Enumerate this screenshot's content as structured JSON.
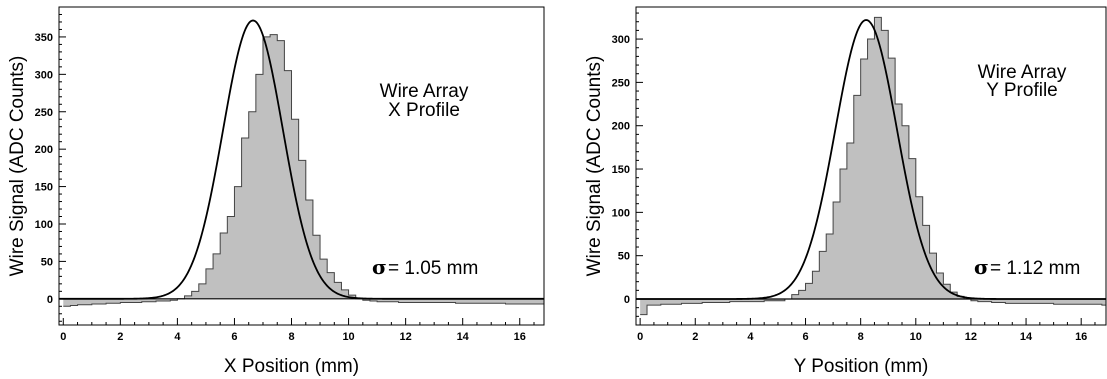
{
  "chart_data": [
    {
      "type": "bar",
      "title": "",
      "xlabel": "X Position (mm)",
      "ylabel": "Wire Signal (ADC Counts)",
      "annotation_lines": [
        "Wire Array",
        "X Profile"
      ],
      "sigma_symbol": "σ",
      "sigma_text": "= 1.05 mm",
      "xlim": [
        -0.15,
        16.85
      ],
      "ylim": [
        -35,
        390
      ],
      "x_ticks": [
        0,
        2,
        4,
        6,
        8,
        10,
        12,
        14,
        16
      ],
      "y_ticks": [
        0,
        50,
        100,
        150,
        200,
        250,
        300,
        350
      ],
      "bin_width": 0.25,
      "bin_start": 0.0,
      "values": [
        -10,
        -9,
        -8,
        -8,
        -7,
        -7,
        -6,
        -6,
        -5,
        -5,
        -5,
        -4,
        -4,
        -3,
        -3,
        -2,
        0,
        4,
        10,
        20,
        40,
        60,
        88,
        110,
        150,
        215,
        250,
        300,
        350,
        353,
        345,
        305,
        240,
        185,
        132,
        85,
        53,
        35,
        22,
        12,
        5,
        0,
        -2,
        -3,
        -4,
        -4,
        -4,
        -5,
        -5,
        -5,
        -5,
        -5,
        -5,
        -5,
        -5,
        -6,
        -6,
        -6,
        -6,
        -6,
        -6,
        -6,
        -7,
        -7,
        -7,
        -7,
        -7,
        -7
      ],
      "fit": {
        "model": "gaussian_plus_constant",
        "mean": 6.65,
        "sigma": 1.05,
        "amplitude": 372,
        "baseline": 0
      },
      "grid": false,
      "fill_color": "#c0c0c0",
      "line_color": "#000000"
    },
    {
      "type": "bar",
      "title": "",
      "xlabel": "Y Position (mm)",
      "ylabel": "Wire Signal (ADC Counts)",
      "annotation_lines": [
        "Wire Array",
        "Y Profile"
      ],
      "sigma_symbol": "σ",
      "sigma_text": "= 1.12 mm",
      "xlim": [
        -0.15,
        16.9
      ],
      "ylim": [
        -30,
        337
      ],
      "x_ticks": [
        0,
        2,
        4,
        6,
        8,
        10,
        12,
        14,
        16
      ],
      "y_ticks": [
        0,
        50,
        100,
        150,
        200,
        250,
        300
      ],
      "bin_width": 0.25,
      "bin_start": 0.0,
      "values": [
        -18,
        -7,
        -7,
        -6,
        -6,
        -6,
        -5,
        -5,
        -5,
        -4,
        -4,
        -4,
        -4,
        -3,
        -3,
        -3,
        -3,
        -3,
        -2,
        -2,
        -2,
        0,
        5,
        10,
        18,
        32,
        55,
        75,
        112,
        150,
        180,
        235,
        277,
        300,
        325,
        310,
        278,
        225,
        200,
        162,
        118,
        85,
        53,
        30,
        17,
        8,
        3,
        0,
        -2,
        -3,
        -3,
        -4,
        -4,
        -5,
        -5,
        -5,
        -5,
        -5,
        -5,
        -5,
        -6,
        -6,
        -6,
        -6,
        -6,
        -6,
        -6,
        -7
      ],
      "fit": {
        "model": "gaussian_plus_constant",
        "mean": 8.2,
        "sigma": 1.12,
        "amplitude": 322,
        "baseline": 0
      },
      "grid": false,
      "fill_color": "#c0c0c0",
      "line_color": "#000000"
    }
  ]
}
